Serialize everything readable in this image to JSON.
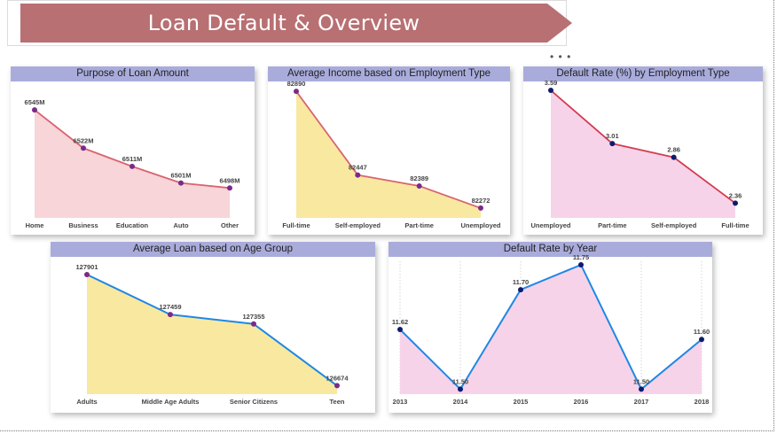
{
  "header": {
    "title": "Loan Default & Overview"
  },
  "colors": {
    "title_bar": "#a9acdb",
    "banner": "#b87073",
    "pink_fill": "#f7d5d8",
    "pink_line": "#d86470",
    "yellow_fill": "#f9e8a0",
    "magenta_fill": "#f7d3ea",
    "red_line": "#d23c4f",
    "blue_line": "#1e88e5",
    "purple_marker": "#7b2a8b",
    "navy_marker": "#0d1b6e"
  },
  "chart_data": [
    {
      "id": "purpose",
      "type": "area",
      "title": "Purpose of Loan Amount",
      "categories": [
        "Home",
        "Business",
        "Education",
        "Auto",
        "Other"
      ],
      "values": [
        6545,
        6522,
        6511,
        6501,
        6498
      ],
      "labels": [
        "6545M",
        "6522M",
        "6511M",
        "6501M",
        "6498M"
      ],
      "ylim": [
        6480,
        6552
      ],
      "grid": false
    },
    {
      "id": "income",
      "type": "area",
      "title": "Average Income based on Employment Type",
      "categories": [
        "Full-time",
        "Self-employed",
        "Part-time",
        "Unemployed"
      ],
      "values": [
        82890,
        82447,
        82389,
        82272
      ],
      "labels": [
        "82890",
        "82447",
        "82389",
        "82272"
      ],
      "ylim": [
        82220,
        82900
      ],
      "grid": false
    },
    {
      "id": "default_emp",
      "type": "area",
      "title": "Default Rate (%) by Employment Type",
      "categories": [
        "Unemployed",
        "Part-time",
        "Self-employed",
        "Full-time"
      ],
      "values": [
        3.59,
        3.01,
        2.86,
        2.36
      ],
      "labels": [
        "3.59",
        "3.01",
        "2.86",
        "2.36"
      ],
      "ylim": [
        2.2,
        3.6
      ],
      "grid": false
    },
    {
      "id": "age",
      "type": "area",
      "title": "Average Loan based on Age Group",
      "categories": [
        "Adults",
        "Middle Age Adults",
        "Senior Citizens",
        "Teen"
      ],
      "values": [
        127901,
        127459,
        127355,
        126674
      ],
      "labels": [
        "127901",
        "127459",
        "127355",
        "126674"
      ],
      "ylim": [
        126580,
        127930
      ],
      "grid": false
    },
    {
      "id": "year",
      "type": "area",
      "title": "Default Rate by Year",
      "categories": [
        "2013",
        "2014",
        "2015",
        "2016",
        "2017",
        "2018"
      ],
      "values": [
        11.62,
        11.5,
        11.7,
        11.75,
        11.5,
        11.6
      ],
      "labels": [
        "11.62",
        "11.50",
        "11.70",
        "11.75",
        "11.50",
        "11.60"
      ],
      "ylim": [
        11.49,
        11.75
      ],
      "grid": true
    }
  ]
}
